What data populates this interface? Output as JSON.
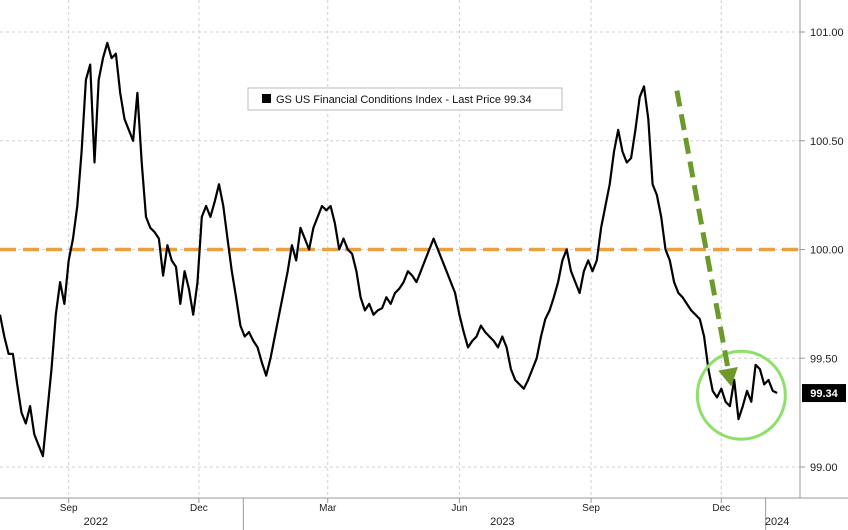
{
  "chart_data": {
    "type": "line",
    "title": "",
    "legend": {
      "entries": [
        "GS US Financial Conditions Index - Last Price 99.34"
      ],
      "placement": "top-center"
    },
    "ylim": [
      98.97,
      101.06
    ],
    "yticks": [
      "99.00",
      "99.50",
      "100.00",
      "100.50",
      "101.00"
    ],
    "ytick_values": [
      99.0,
      99.5,
      100.0,
      100.5,
      101.0
    ],
    "last_price_label": "99.34",
    "last_price": 99.34,
    "grid": true,
    "xlim": [
      "2022-07-15",
      "2024-01-25"
    ],
    "xtick_labels": [
      "Sep",
      "Dec",
      "Mar",
      "Jun",
      "Sep",
      "Dec"
    ],
    "xtick_dates": [
      "2022-09-01",
      "2022-12-01",
      "2023-03-01",
      "2023-06-01",
      "2023-09-01",
      "2023-12-01"
    ],
    "year_labels": [
      "2022",
      "2023",
      "2024"
    ],
    "year_label_dates": [
      "2022-09-20",
      "2023-07-01",
      "2024-01-09"
    ],
    "year_boundaries": [
      "2023-01-01",
      "2024-01-01"
    ],
    "reference_line": {
      "y": 100.0,
      "color": "#e8a040",
      "style": "dashed"
    },
    "trend_arrow": {
      "from": [
        "2023-10-31",
        100.73
      ],
      "to": [
        "2023-12-08",
        99.37
      ],
      "color": "#6b9a2a"
    },
    "highlight_circle": {
      "center": [
        "2023-12-15",
        99.33
      ],
      "color": "#8ee06a"
    },
    "series": [
      {
        "color": "#000000",
        "points": [
          [
            "2022-07-15",
            99.7
          ],
          [
            "2022-07-18",
            99.6
          ],
          [
            "2022-07-21",
            99.52
          ],
          [
            "2022-07-24",
            99.52
          ],
          [
            "2022-07-27",
            99.38
          ],
          [
            "2022-07-30",
            99.25
          ],
          [
            "2022-08-02",
            99.2
          ],
          [
            "2022-08-05",
            99.28
          ],
          [
            "2022-08-08",
            99.15
          ],
          [
            "2022-08-11",
            99.1
          ],
          [
            "2022-08-14",
            99.05
          ],
          [
            "2022-08-17",
            99.25
          ],
          [
            "2022-08-20",
            99.45
          ],
          [
            "2022-08-23",
            99.7
          ],
          [
            "2022-08-26",
            99.85
          ],
          [
            "2022-08-29",
            99.75
          ],
          [
            "2022-09-01",
            99.95
          ],
          [
            "2022-09-04",
            100.05
          ],
          [
            "2022-09-07",
            100.2
          ],
          [
            "2022-09-10",
            100.45
          ],
          [
            "2022-09-13",
            100.78
          ],
          [
            "2022-09-16",
            100.85
          ],
          [
            "2022-09-19",
            100.4
          ],
          [
            "2022-09-22",
            100.78
          ],
          [
            "2022-09-25",
            100.88
          ],
          [
            "2022-09-28",
            100.95
          ],
          [
            "2022-10-01",
            100.88
          ],
          [
            "2022-10-04",
            100.9
          ],
          [
            "2022-10-07",
            100.72
          ],
          [
            "2022-10-10",
            100.6
          ],
          [
            "2022-10-13",
            100.55
          ],
          [
            "2022-10-16",
            100.5
          ],
          [
            "2022-10-19",
            100.72
          ],
          [
            "2022-10-22",
            100.4
          ],
          [
            "2022-10-25",
            100.15
          ],
          [
            "2022-10-28",
            100.1
          ],
          [
            "2022-10-31",
            100.08
          ],
          [
            "2022-11-03",
            100.05
          ],
          [
            "2022-11-06",
            99.88
          ],
          [
            "2022-11-09",
            100.02
          ],
          [
            "2022-11-12",
            99.95
          ],
          [
            "2022-11-15",
            99.92
          ],
          [
            "2022-11-18",
            99.75
          ],
          [
            "2022-11-21",
            99.9
          ],
          [
            "2022-11-24",
            99.82
          ],
          [
            "2022-11-27",
            99.7
          ],
          [
            "2022-11-30",
            99.85
          ],
          [
            "2022-12-03",
            100.15
          ],
          [
            "2022-12-06",
            100.2
          ],
          [
            "2022-12-09",
            100.15
          ],
          [
            "2022-12-12",
            100.22
          ],
          [
            "2022-12-15",
            100.3
          ],
          [
            "2022-12-18",
            100.2
          ],
          [
            "2022-12-21",
            100.05
          ],
          [
            "2022-12-24",
            99.9
          ],
          [
            "2022-12-27",
            99.78
          ],
          [
            "2022-12-30",
            99.65
          ],
          [
            "2023-01-02",
            99.6
          ],
          [
            "2023-01-05",
            99.62
          ],
          [
            "2023-01-08",
            99.58
          ],
          [
            "2023-01-11",
            99.55
          ],
          [
            "2023-01-14",
            99.48
          ],
          [
            "2023-01-17",
            99.42
          ],
          [
            "2023-01-20",
            99.5
          ],
          [
            "2023-01-23",
            99.6
          ],
          [
            "2023-01-26",
            99.7
          ],
          [
            "2023-01-29",
            99.8
          ],
          [
            "2023-02-01",
            99.9
          ],
          [
            "2023-02-04",
            100.02
          ],
          [
            "2023-02-07",
            99.95
          ],
          [
            "2023-02-10",
            100.1
          ],
          [
            "2023-02-13",
            100.05
          ],
          [
            "2023-02-16",
            100.0
          ],
          [
            "2023-02-19",
            100.1
          ],
          [
            "2023-02-22",
            100.15
          ],
          [
            "2023-02-25",
            100.2
          ],
          [
            "2023-02-28",
            100.18
          ],
          [
            "2023-03-03",
            100.2
          ],
          [
            "2023-03-06",
            100.12
          ],
          [
            "2023-03-09",
            100.0
          ],
          [
            "2023-03-12",
            100.05
          ],
          [
            "2023-03-15",
            100.0
          ],
          [
            "2023-03-18",
            99.98
          ],
          [
            "2023-03-21",
            99.9
          ],
          [
            "2023-03-24",
            99.78
          ],
          [
            "2023-03-27",
            99.72
          ],
          [
            "2023-03-30",
            99.75
          ],
          [
            "2023-04-02",
            99.7
          ],
          [
            "2023-04-05",
            99.72
          ],
          [
            "2023-04-08",
            99.73
          ],
          [
            "2023-04-11",
            99.78
          ],
          [
            "2023-04-14",
            99.75
          ],
          [
            "2023-04-17",
            99.8
          ],
          [
            "2023-04-20",
            99.82
          ],
          [
            "2023-04-23",
            99.85
          ],
          [
            "2023-04-26",
            99.9
          ],
          [
            "2023-04-29",
            99.88
          ],
          [
            "2023-05-02",
            99.85
          ],
          [
            "2023-05-05",
            99.9
          ],
          [
            "2023-05-08",
            99.95
          ],
          [
            "2023-05-11",
            100.0
          ],
          [
            "2023-05-14",
            100.05
          ],
          [
            "2023-05-17",
            100.0
          ],
          [
            "2023-05-20",
            99.95
          ],
          [
            "2023-05-23",
            99.9
          ],
          [
            "2023-05-26",
            99.85
          ],
          [
            "2023-05-29",
            99.8
          ],
          [
            "2023-06-01",
            99.7
          ],
          [
            "2023-06-04",
            99.62
          ],
          [
            "2023-06-07",
            99.55
          ],
          [
            "2023-06-10",
            99.58
          ],
          [
            "2023-06-13",
            99.6
          ],
          [
            "2023-06-16",
            99.65
          ],
          [
            "2023-06-19",
            99.62
          ],
          [
            "2023-06-22",
            99.6
          ],
          [
            "2023-06-25",
            99.58
          ],
          [
            "2023-06-28",
            99.55
          ],
          [
            "2023-07-01",
            99.6
          ],
          [
            "2023-07-04",
            99.55
          ],
          [
            "2023-07-07",
            99.45
          ],
          [
            "2023-07-10",
            99.4
          ],
          [
            "2023-07-13",
            99.38
          ],
          [
            "2023-07-16",
            99.36
          ],
          [
            "2023-07-19",
            99.4
          ],
          [
            "2023-07-22",
            99.45
          ],
          [
            "2023-07-25",
            99.5
          ],
          [
            "2023-07-28",
            99.6
          ],
          [
            "2023-07-31",
            99.68
          ],
          [
            "2023-08-03",
            99.72
          ],
          [
            "2023-08-06",
            99.78
          ],
          [
            "2023-08-09",
            99.85
          ],
          [
            "2023-08-12",
            99.95
          ],
          [
            "2023-08-15",
            100.0
          ],
          [
            "2023-08-18",
            99.9
          ],
          [
            "2023-08-21",
            99.85
          ],
          [
            "2023-08-24",
            99.8
          ],
          [
            "2023-08-27",
            99.9
          ],
          [
            "2023-08-30",
            99.95
          ],
          [
            "2023-09-02",
            99.9
          ],
          [
            "2023-09-05",
            99.95
          ],
          [
            "2023-09-08",
            100.1
          ],
          [
            "2023-09-11",
            100.2
          ],
          [
            "2023-09-14",
            100.3
          ],
          [
            "2023-09-17",
            100.45
          ],
          [
            "2023-09-20",
            100.55
          ],
          [
            "2023-09-23",
            100.45
          ],
          [
            "2023-09-26",
            100.4
          ],
          [
            "2023-09-29",
            100.42
          ],
          [
            "2023-10-02",
            100.55
          ],
          [
            "2023-10-05",
            100.7
          ],
          [
            "2023-10-08",
            100.75
          ],
          [
            "2023-10-11",
            100.6
          ],
          [
            "2023-10-14",
            100.3
          ],
          [
            "2023-10-17",
            100.25
          ],
          [
            "2023-10-20",
            100.15
          ],
          [
            "2023-10-23",
            100.0
          ],
          [
            "2023-10-26",
            99.95
          ],
          [
            "2023-10-29",
            99.85
          ],
          [
            "2023-11-01",
            99.8
          ],
          [
            "2023-11-04",
            99.78
          ],
          [
            "2023-11-07",
            99.75
          ],
          [
            "2023-11-10",
            99.72
          ],
          [
            "2023-11-13",
            99.7
          ],
          [
            "2023-11-16",
            99.68
          ],
          [
            "2023-11-19",
            99.6
          ],
          [
            "2023-11-22",
            99.45
          ],
          [
            "2023-11-25",
            99.35
          ],
          [
            "2023-11-28",
            99.32
          ],
          [
            "2023-12-01",
            99.36
          ],
          [
            "2023-12-04",
            99.3
          ],
          [
            "2023-12-07",
            99.28
          ],
          [
            "2023-12-10",
            99.4
          ],
          [
            "2023-12-13",
            99.22
          ],
          [
            "2023-12-16",
            99.28
          ],
          [
            "2023-12-19",
            99.35
          ],
          [
            "2023-12-22",
            99.3
          ],
          [
            "2023-12-25",
            99.47
          ],
          [
            "2023-12-28",
            99.45
          ],
          [
            "2023-12-31",
            99.38
          ],
          [
            "2024-01-03",
            99.4
          ],
          [
            "2024-01-06",
            99.35
          ],
          [
            "2024-01-09",
            99.34
          ]
        ]
      }
    ]
  }
}
